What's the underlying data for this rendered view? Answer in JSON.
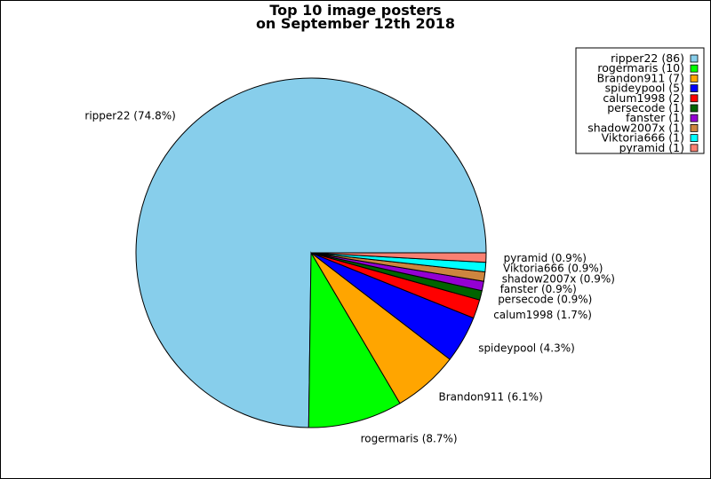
{
  "chart_data": {
    "type": "pie",
    "title_line1": "Top 10 image posters",
    "title_line2": "on September 12th 2018",
    "categories": [
      "ripper22",
      "rogermaris",
      "Brandon911",
      "spideypool",
      "calum1998",
      "persecode",
      "fanster",
      "shadow2007x",
      "Viktoria666",
      "pyramid"
    ],
    "values": [
      86,
      10,
      7,
      5,
      2,
      1,
      1,
      1,
      1,
      1
    ],
    "slice_labels": [
      "ripper22 (74.8%)",
      "rogermaris (8.7%)",
      "Brandon911 (6.1%)",
      "spideypool (4.3%)",
      "calum1998 (1.7%)",
      "persecode (0.9%)",
      "fanster (0.9%)",
      "shadow2007x (0.9%)",
      "Viktoria666 (0.9%)",
      "pyramid (0.9%)"
    ],
    "legend_entries": [
      "ripper22 (86)",
      "rogermaris (10)",
      "Brandon911 (7)",
      "spideypool (5)",
      "calum1998 (2)",
      "persecode (1)",
      "fanster (1)",
      "shadow2007x (1)",
      "Viktoria666 (1)",
      "pyramid (1)"
    ],
    "colors": [
      "#87ceeb",
      "#00ff00",
      "#ffa500",
      "#0000ff",
      "#ff0000",
      "#006400",
      "#9400d3",
      "#cd853f",
      "#00ffff",
      "#fa8072"
    ],
    "legend_position": "top-right"
  }
}
